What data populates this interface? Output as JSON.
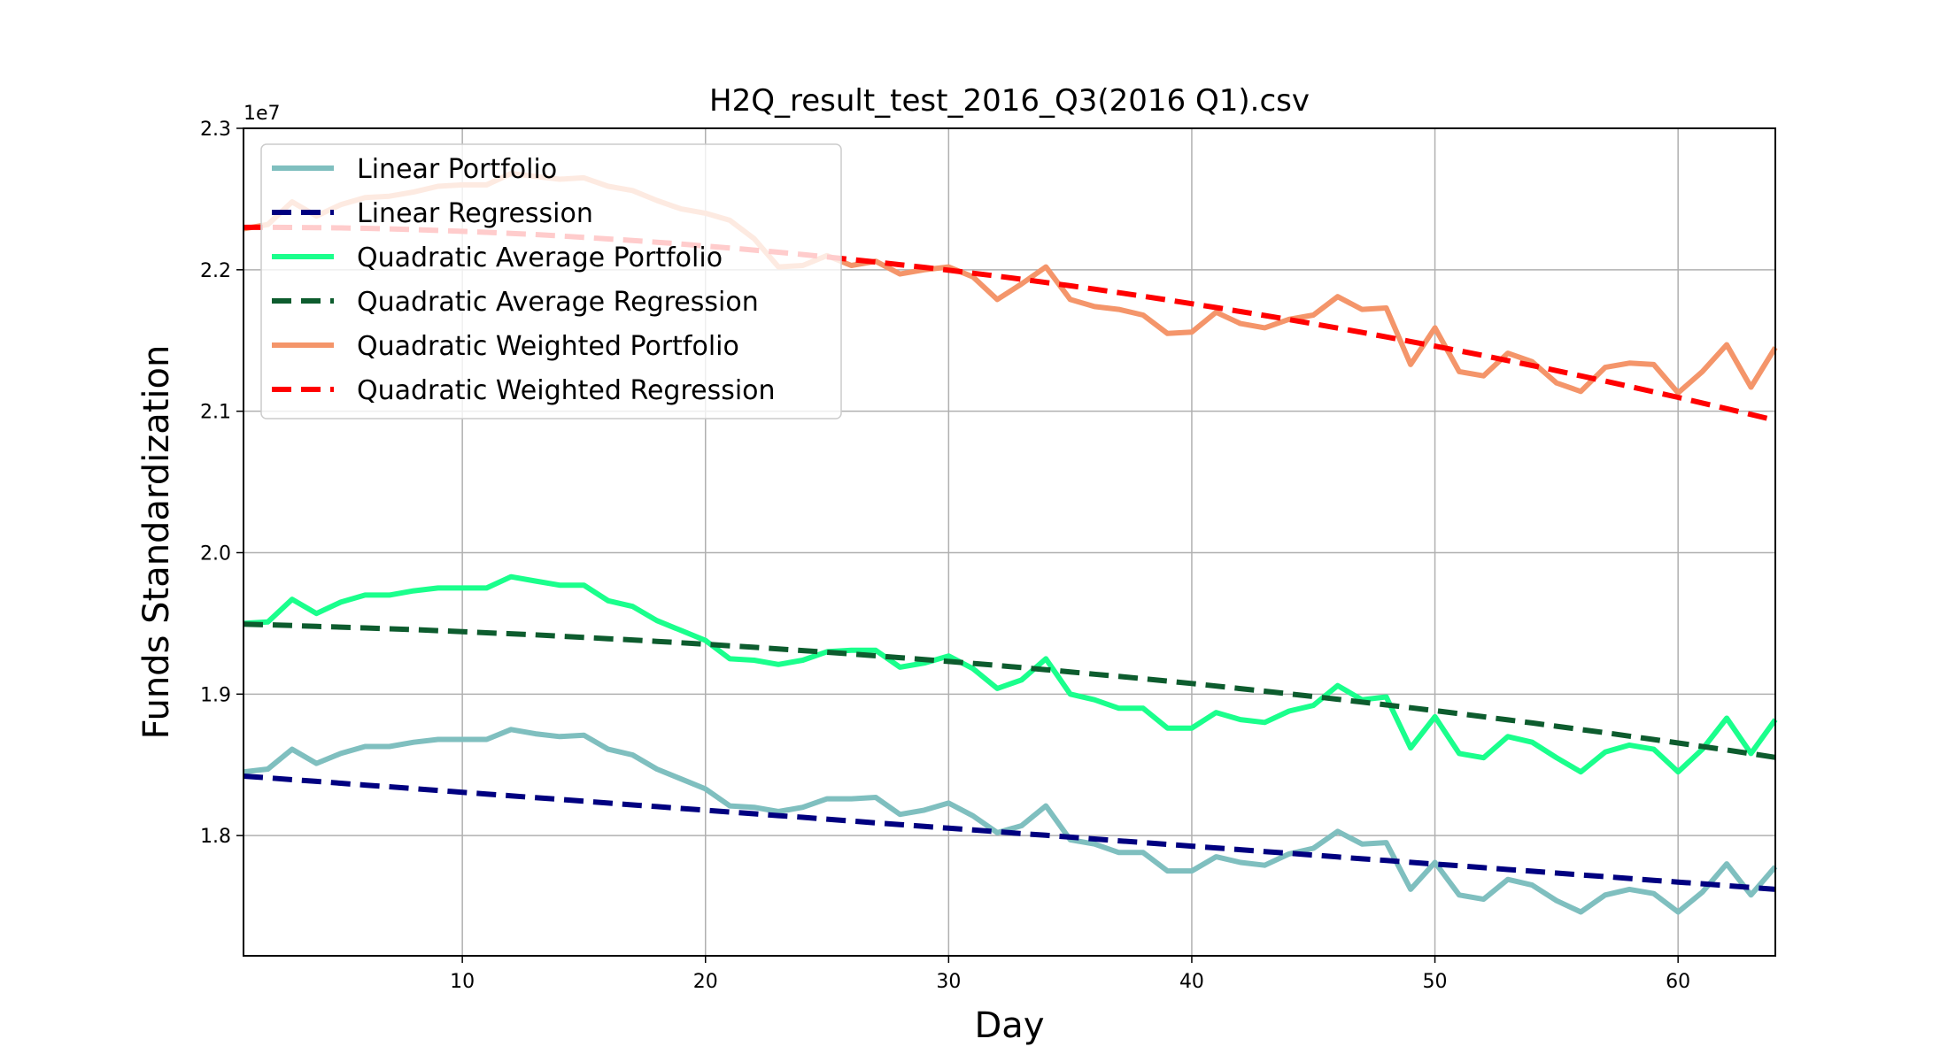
{
  "chart_data": {
    "type": "line",
    "title": "H2Q_result_test_2016_Q3(2016 Q1).csv",
    "xlabel": "Day",
    "ylabel": "Funds Standardization",
    "y_offset_label": "1e7",
    "xlim": [
      1,
      64
    ],
    "ylim": [
      1.715,
      2.3
    ],
    "xticks": [
      10,
      20,
      30,
      40,
      50,
      60
    ],
    "yticks": [
      1.8,
      1.9,
      2.0,
      2.1,
      2.2,
      2.3
    ],
    "ytick_labels": [
      "1.8",
      "1.9",
      "2.0",
      "2.1",
      "2.2",
      "2.3"
    ],
    "grid": true,
    "legend_position": "upper-left",
    "x": [
      1,
      2,
      3,
      4,
      5,
      6,
      7,
      8,
      9,
      10,
      11,
      12,
      13,
      14,
      15,
      16,
      17,
      18,
      19,
      20,
      21,
      22,
      23,
      24,
      25,
      26,
      27,
      28,
      29,
      30,
      31,
      32,
      33,
      34,
      35,
      36,
      37,
      38,
      39,
      40,
      41,
      42,
      43,
      44,
      45,
      46,
      47,
      48,
      49,
      50,
      51,
      52,
      53,
      54,
      55,
      56,
      57,
      58,
      59,
      60,
      61,
      62,
      63,
      64
    ],
    "series": [
      {
        "name": "Linear Portfolio",
        "style": "solid",
        "color": "#7fbfbf",
        "values": [
          1.845,
          1.847,
          1.861,
          1.851,
          1.858,
          1.863,
          1.863,
          1.866,
          1.868,
          1.868,
          1.868,
          1.875,
          1.872,
          1.87,
          1.871,
          1.861,
          1.857,
          1.847,
          1.84,
          1.833,
          1.821,
          1.82,
          1.817,
          1.82,
          1.826,
          1.826,
          1.827,
          1.815,
          1.818,
          1.823,
          1.814,
          1.802,
          1.807,
          1.821,
          1.797,
          1.794,
          1.788,
          1.788,
          1.775,
          1.775,
          1.785,
          1.781,
          1.779,
          1.787,
          1.791,
          1.803,
          1.794,
          1.795,
          1.762,
          1.781,
          1.758,
          1.755,
          1.769,
          1.765,
          1.754,
          1.746,
          1.758,
          1.762,
          1.759,
          1.746,
          1.76,
          1.78,
          1.758,
          1.778
        ]
      },
      {
        "name": "Linear Regression",
        "style": "dashed",
        "color": "#000080",
        "values": [
          1.842,
          1.8408,
          1.8395,
          1.8383,
          1.837,
          1.8357,
          1.8345,
          1.8332,
          1.8319,
          1.8306,
          1.8294,
          1.8281,
          1.8268,
          1.8256,
          1.8243,
          1.823,
          1.8217,
          1.8205,
          1.8192,
          1.8179,
          1.8167,
          1.8154,
          1.8141,
          1.8129,
          1.8116,
          1.8103,
          1.809,
          1.8078,
          1.8065,
          1.8052,
          1.804,
          1.8027,
          1.8014,
          1.8002,
          1.7989,
          1.7976,
          1.7963,
          1.7951,
          1.7938,
          1.7925,
          1.7913,
          1.79,
          1.7887,
          1.7875,
          1.7862,
          1.7849,
          1.7836,
          1.7824,
          1.7811,
          1.7798,
          1.7786,
          1.7773,
          1.776,
          1.7748,
          1.7735,
          1.7722,
          1.771,
          1.7697,
          1.7684,
          1.7671,
          1.7659,
          1.7646,
          1.7633,
          1.762
        ]
      },
      {
        "name": "Quadratic Average Portfolio",
        "style": "solid",
        "color": "#1aff8c",
        "values": [
          1.95,
          1.951,
          1.967,
          1.957,
          1.965,
          1.97,
          1.97,
          1.973,
          1.975,
          1.975,
          1.975,
          1.983,
          1.98,
          1.977,
          1.977,
          1.966,
          1.962,
          1.952,
          1.945,
          1.938,
          1.925,
          1.924,
          1.921,
          1.924,
          1.93,
          1.931,
          1.931,
          1.919,
          1.922,
          1.927,
          1.918,
          1.904,
          1.91,
          1.925,
          1.9,
          1.896,
          1.89,
          1.89,
          1.876,
          1.876,
          1.887,
          1.882,
          1.88,
          1.888,
          1.892,
          1.906,
          1.896,
          1.898,
          1.862,
          1.884,
          1.858,
          1.855,
          1.87,
          1.866,
          1.855,
          1.845,
          1.859,
          1.864,
          1.861,
          1.845,
          1.861,
          1.883,
          1.858,
          1.882
        ]
      },
      {
        "name": "Quadratic Average Regression",
        "style": "dashed",
        "color": "#0d5c2e",
        "values": [
          1.9495,
          1.949,
          1.9485,
          1.9479,
          1.9474,
          1.9468,
          1.9462,
          1.9456,
          1.9449,
          1.9442,
          1.9434,
          1.9427,
          1.9419,
          1.941,
          1.9401,
          1.9392,
          1.9383,
          1.9373,
          1.9363,
          1.9353,
          1.9342,
          1.9331,
          1.932,
          1.9308,
          1.9296,
          1.9284,
          1.9271,
          1.9258,
          1.9245,
          1.9231,
          1.9217,
          1.9203,
          1.9188,
          1.9173,
          1.9157,
          1.9141,
          1.9125,
          1.9109,
          1.9092,
          1.9075,
          1.9057,
          1.9039,
          1.9021,
          1.9002,
          1.8983,
          1.8964,
          1.8944,
          1.8924,
          1.8904,
          1.8883,
          1.8862,
          1.884,
          1.8818,
          1.8796,
          1.8773,
          1.875,
          1.8727,
          1.8703,
          1.8679,
          1.8655,
          1.863,
          1.8605,
          1.8579,
          1.8553
        ]
      },
      {
        "name": "Quadratic Weighted Portfolio",
        "style": "solid",
        "color": "#f4956a",
        "values": [
          2.229,
          2.232,
          2.248,
          2.238,
          2.246,
          2.251,
          2.252,
          2.255,
          2.259,
          2.26,
          2.26,
          2.268,
          2.266,
          2.264,
          2.265,
          2.259,
          2.256,
          2.249,
          2.243,
          2.24,
          2.235,
          2.222,
          2.202,
          2.203,
          2.21,
          2.203,
          2.206,
          2.197,
          2.2,
          2.202,
          2.195,
          2.179,
          2.19,
          2.202,
          2.179,
          2.174,
          2.172,
          2.168,
          2.155,
          2.156,
          2.17,
          2.162,
          2.159,
          2.165,
          2.168,
          2.181,
          2.172,
          2.173,
          2.133,
          2.159,
          2.128,
          2.125,
          2.141,
          2.135,
          2.12,
          2.114,
          2.131,
          2.134,
          2.133,
          2.113,
          2.128,
          2.147,
          2.117,
          2.145
        ]
      },
      {
        "name": "Quadratic Weighted Regression",
        "style": "dashed",
        "color": "#ff0000",
        "values": [
          2.23,
          2.23,
          2.2299,
          2.2298,
          2.2296,
          2.2293,
          2.2289,
          2.2284,
          2.2278,
          2.2272,
          2.2265,
          2.2257,
          2.2249,
          2.2239,
          2.2229,
          2.2218,
          2.2207,
          2.2195,
          2.2182,
          2.2168,
          2.2154,
          2.2139,
          2.2124,
          2.2108,
          2.2091,
          2.2073,
          2.2055,
          2.2036,
          2.2017,
          2.1997,
          2.1976,
          2.1955,
          2.1933,
          2.191,
          2.1887,
          2.1863,
          2.1838,
          2.1813,
          2.1787,
          2.176,
          2.1733,
          2.1705,
          2.1677,
          2.1648,
          2.1618,
          2.1588,
          2.1557,
          2.1525,
          2.1493,
          2.146,
          2.1427,
          2.1393,
          2.1358,
          2.1323,
          2.1287,
          2.125,
          2.1213,
          2.1175,
          2.1137,
          2.1098,
          2.1058,
          2.1018,
          2.0977,
          2.0936
        ]
      }
    ]
  }
}
